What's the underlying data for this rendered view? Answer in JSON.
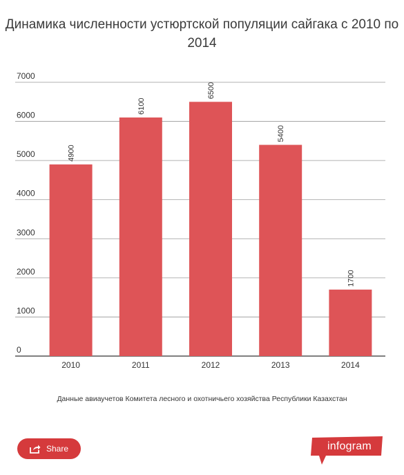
{
  "title": "Динамика численности устюртской популяции сайгака с 2010 по 2014",
  "source_note": "Данные авиаучетов Комитета лесного и охотничьего хозяйства Республики Казахстан",
  "share_label": "Share",
  "brand_label": "infogram",
  "colors": {
    "bar": "#de5457",
    "accent": "#d53a3c",
    "grid": "#999999"
  },
  "icons": {
    "share": "share-icon"
  },
  "chart_data": {
    "type": "bar",
    "categories": [
      "2010",
      "2011",
      "2012",
      "2013",
      "2014"
    ],
    "values": [
      4900,
      6100,
      6500,
      5400,
      1700
    ],
    "data_labels": [
      "4900",
      "6100",
      "6500",
      "5400",
      "1700"
    ],
    "ylim": [
      0,
      7000
    ],
    "yticks": [
      "0",
      "1000",
      "2000",
      "3000",
      "4000",
      "5000",
      "6000",
      "7000"
    ],
    "grid": true,
    "legend": "none"
  }
}
